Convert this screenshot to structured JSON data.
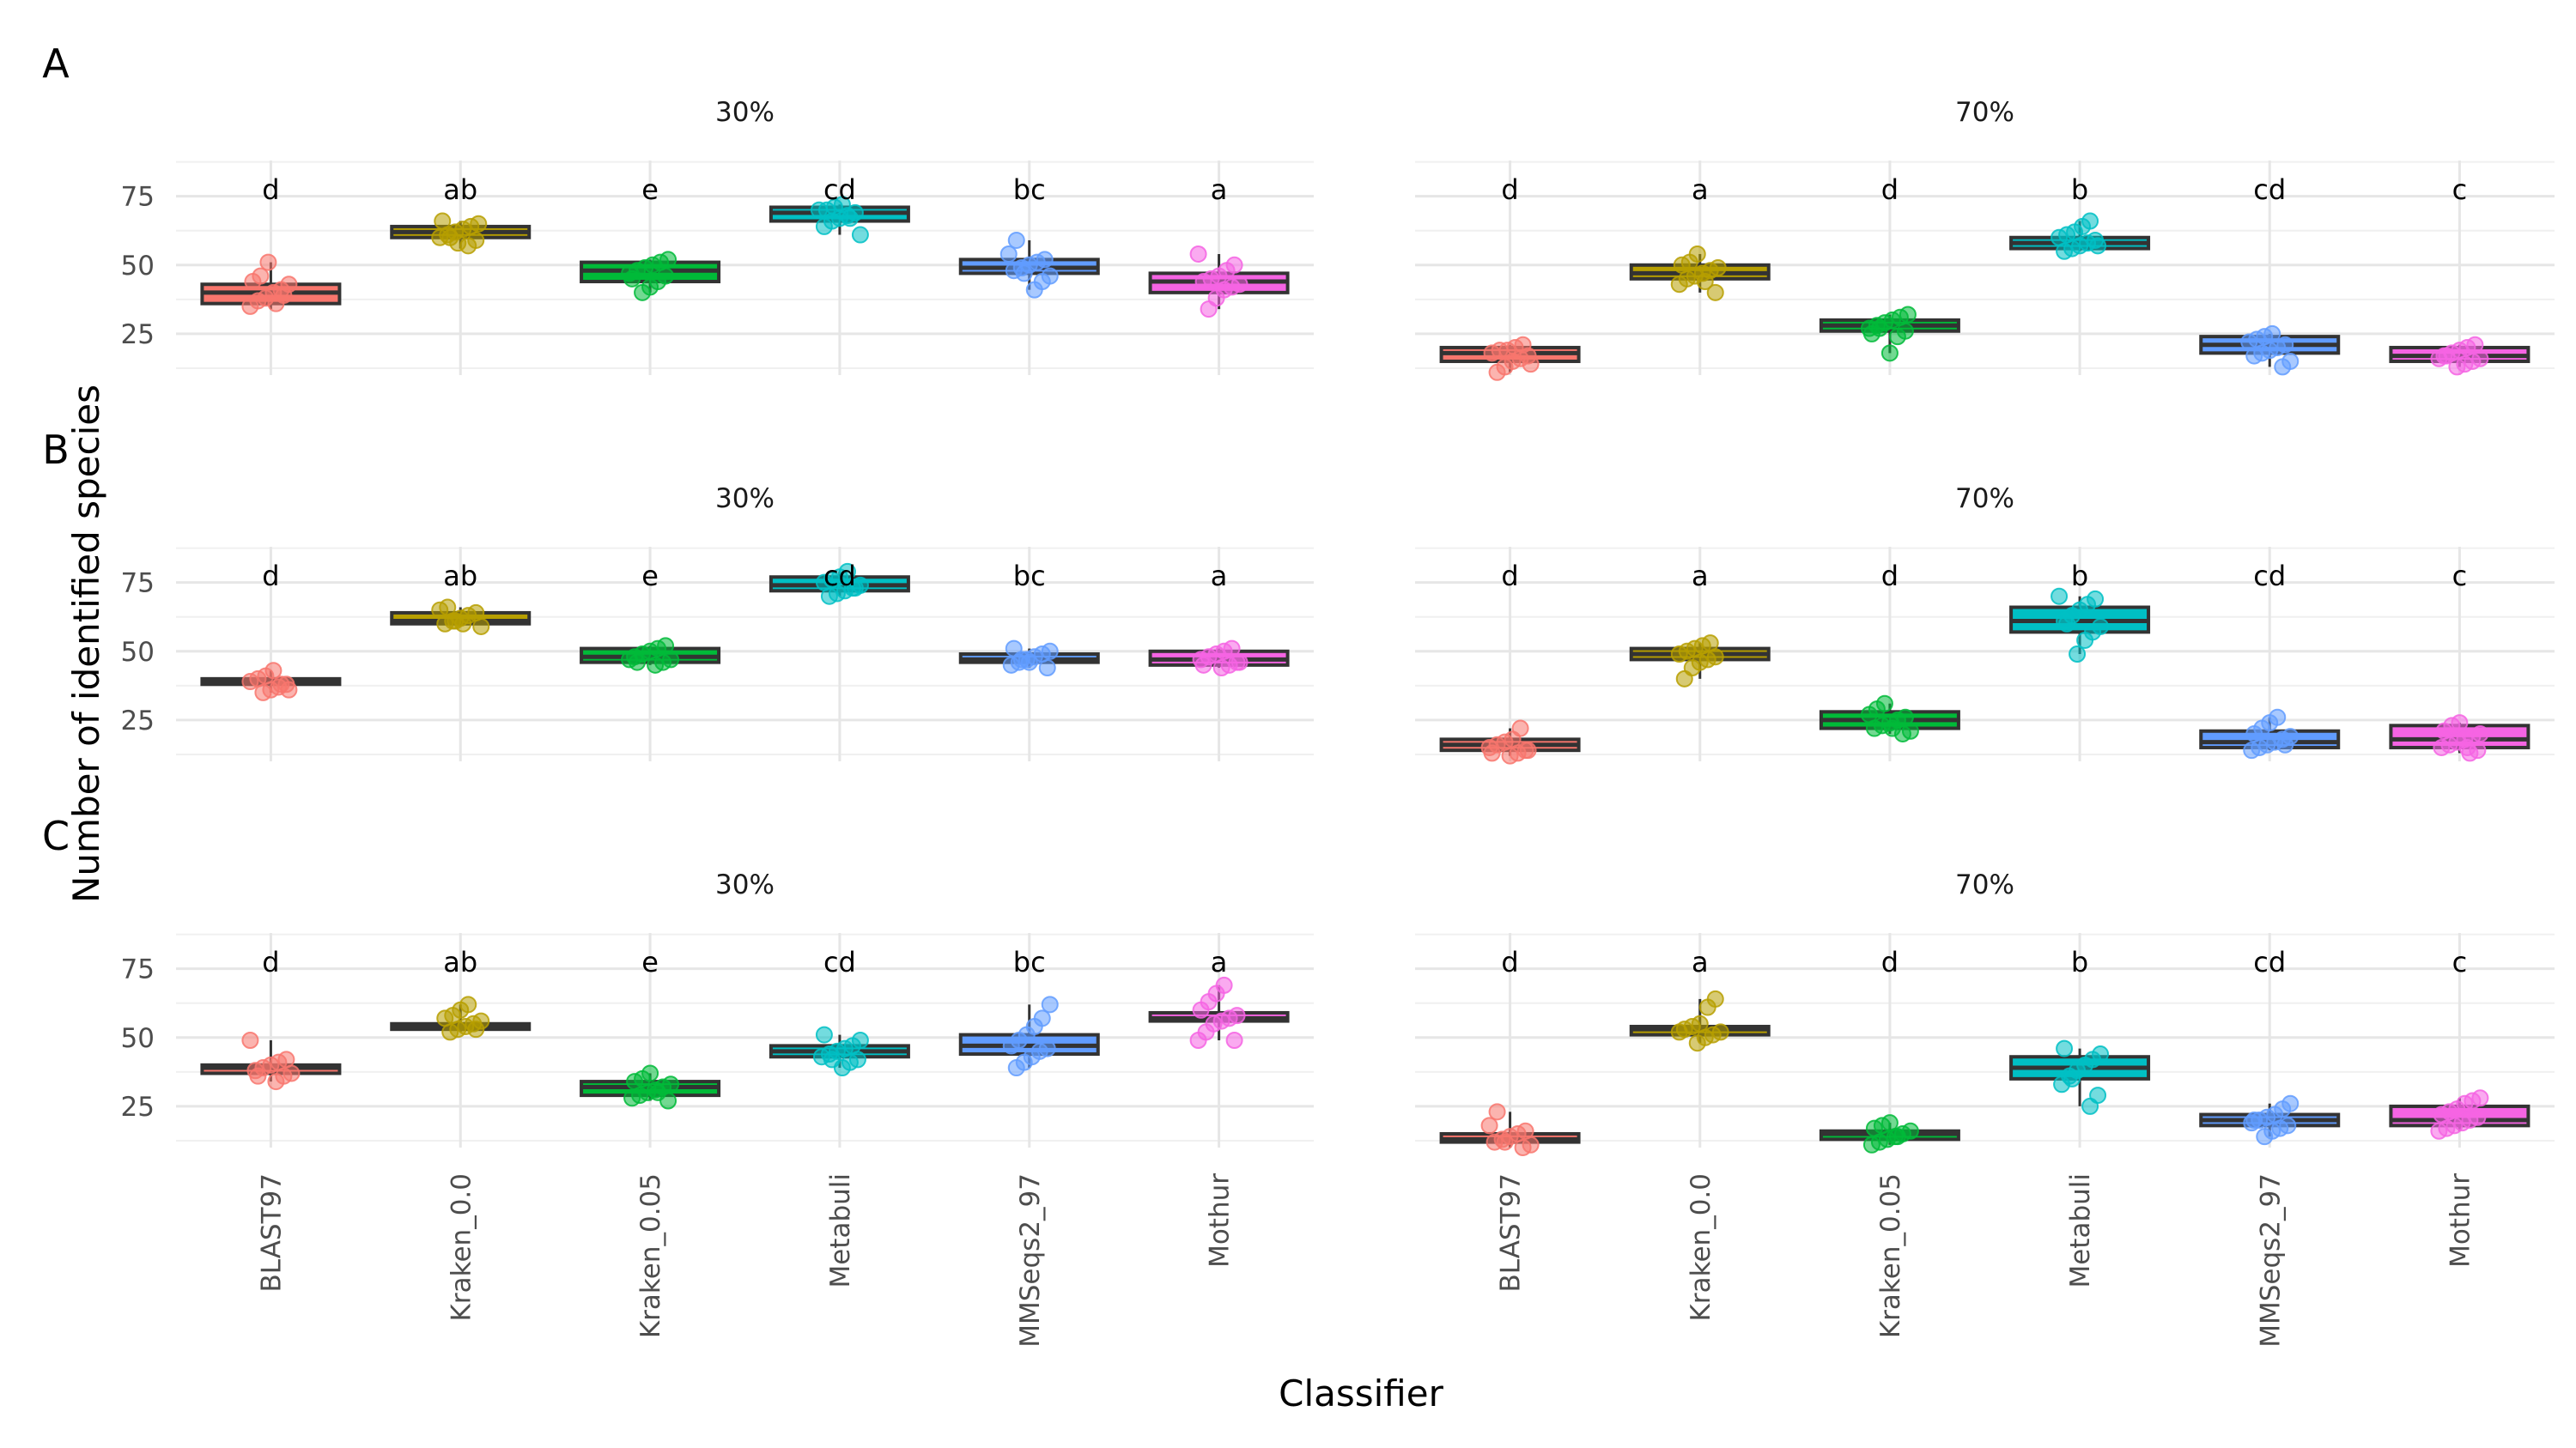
{
  "figure": {
    "ylabel": "Number of identified species",
    "xlabel": "Classifier"
  },
  "chart_data": {
    "type": "boxplot",
    "categories": [
      "BLAST97",
      "Kraken_0.0",
      "Kraken_0.05",
      "Metabuli",
      "MMSeqs2_97",
      "Mothur"
    ],
    "colors": [
      "#F8766D",
      "#B79F00",
      "#00BA38",
      "#00BFC4",
      "#619CFF",
      "#F564E3"
    ],
    "ylim": [
      10,
      88
    ],
    "yticks": [
      25,
      50,
      75
    ],
    "grid": true,
    "panels": [
      {
        "label": "A",
        "facets": [
          {
            "title": "30%",
            "letters": [
              "d",
              "ab",
              "e",
              "cd",
              "bc",
              "a"
            ],
            "boxes": [
              [
                34,
                36,
                40,
                43,
                51
              ],
              [
                56,
                60,
                62,
                64,
                66
              ],
              [
                40,
                44,
                48,
                51,
                52
              ],
              [
                61,
                66,
                69,
                71,
                72
              ],
              [
                41,
                47,
                49,
                52,
                59
              ],
              [
                34,
                40,
                44,
                47,
                54
              ]
            ],
            "points": [
              [
                35,
                37,
                38,
                40,
                41,
                43,
                44,
                46,
                51,
                36,
                39
              ],
              [
                57,
                59,
                60,
                61,
                62,
                63,
                64,
                65,
                66,
                60,
                58
              ],
              [
                40,
                42,
                44,
                46,
                47,
                48,
                49,
                50,
                51,
                52,
                45
              ],
              [
                61,
                64,
                66,
                67,
                68,
                69,
                70,
                70,
                71,
                72,
                67
              ],
              [
                41,
                44,
                46,
                48,
                49,
                50,
                51,
                52,
                54,
                59,
                47
              ],
              [
                34,
                38,
                41,
                42,
                43,
                44,
                45,
                46,
                48,
                50,
                54
              ]
            ]
          },
          {
            "title": "70%",
            "letters": [
              "d",
              "a",
              "d",
              "b",
              "cd",
              "c"
            ],
            "boxes": [
              [
                11,
                15,
                18,
                20,
                21
              ],
              [
                40,
                45,
                47,
                50,
                54
              ],
              [
                18,
                26,
                28,
                30,
                32
              ],
              [
                55,
                56,
                58,
                60,
                66
              ],
              [
                13,
                18,
                21,
                24,
                25
              ],
              [
                13,
                15,
                17,
                20,
                21
              ]
            ],
            "points": [
              [
                11,
                13,
                15,
                16,
                17,
                18,
                19,
                19,
                20,
                21,
                14
              ],
              [
                40,
                43,
                45,
                46,
                47,
                48,
                49,
                50,
                51,
                54,
                44
              ],
              [
                18,
                24,
                26,
                27,
                28,
                29,
                30,
                31,
                32,
                25,
                27
              ],
              [
                55,
                56,
                57,
                58,
                59,
                60,
                61,
                62,
                64,
                66,
                57
              ],
              [
                13,
                15,
                17,
                18,
                19,
                20,
                21,
                22,
                23,
                24,
                25
              ],
              [
                13,
                14,
                15,
                16,
                17,
                18,
                19,
                20,
                21,
                16,
                17
              ]
            ]
          }
        ]
      },
      {
        "label": "B",
        "facets": [
          {
            "title": "30%",
            "letters": [
              "d",
              "ab",
              "e",
              "cd",
              "bc",
              "a"
            ],
            "boxes": [
              [
                35,
                38,
                39,
                40,
                43
              ],
              [
                59,
                60,
                61,
                64,
                66
              ],
              [
                45,
                46,
                48,
                51,
                52
              ],
              [
                70,
                72,
                74,
                77,
                79
              ],
              [
                44,
                46,
                47,
                49,
                51
              ],
              [
                44,
                45,
                47,
                50,
                51
              ]
            ],
            "points": [
              [
                35,
                36,
                37,
                38,
                39,
                40,
                41,
                43,
                38,
                36
              ],
              [
                59,
                60,
                61,
                62,
                63,
                64,
                65,
                66,
                61,
                60
              ],
              [
                45,
                46,
                47,
                48,
                49,
                50,
                51,
                52,
                47,
                46
              ],
              [
                70,
                71,
                72,
                73,
                74,
                75,
                76,
                77,
                79,
                73
              ],
              [
                44,
                45,
                46,
                47,
                48,
                49,
                50,
                51,
                47,
                46
              ],
              [
                44,
                45,
                46,
                47,
                48,
                49,
                50,
                51,
                46,
                45
              ]
            ]
          },
          {
            "title": "70%",
            "letters": [
              "d",
              "a",
              "d",
              "b",
              "cd",
              "c"
            ],
            "boxes": [
              [
                12,
                14,
                16,
                18,
                22
              ],
              [
                40,
                47,
                49,
                51,
                53
              ],
              [
                20,
                22,
                25,
                28,
                31
              ],
              [
                49,
                57,
                61,
                66,
                70
              ],
              [
                14,
                15,
                17,
                21,
                26
              ],
              [
                13,
                15,
                18,
                23,
                24
              ]
            ],
            "points": [
              [
                12,
                13,
                14,
                15,
                16,
                17,
                18,
                22,
                14,
                13
              ],
              [
                40,
                44,
                46,
                47,
                48,
                49,
                50,
                51,
                52,
                53
              ],
              [
                20,
                21,
                22,
                23,
                24,
                25,
                26,
                27,
                29,
                31,
                22
              ],
              [
                49,
                54,
                57,
                59,
                61,
                63,
                65,
                67,
                69,
                70,
                60
              ],
              [
                14,
                15,
                16,
                17,
                18,
                19,
                20,
                22,
                24,
                26,
                16
              ],
              [
                13,
                14,
                15,
                16,
                17,
                18,
                19,
                20,
                21,
                23,
                24,
                15
              ]
            ]
          }
        ]
      },
      {
        "label": "C",
        "facets": [
          {
            "title": "30%",
            "letters": [
              "d",
              "ab",
              "e",
              "cd",
              "bc",
              "a"
            ],
            "boxes": [
              [
                34,
                37,
                39,
                40,
                49
              ],
              [
                52,
                53,
                54,
                55,
                62
              ],
              [
                27,
                29,
                32,
                34,
                37
              ],
              [
                39,
                43,
                45,
                47,
                51
              ],
              [
                39,
                44,
                47,
                51,
                62
              ],
              [
                49,
                56,
                57,
                59,
                69
              ]
            ],
            "points": [
              [
                34,
                36,
                37,
                38,
                39,
                40,
                41,
                42,
                49,
                36
              ],
              [
                52,
                53,
                54,
                55,
                56,
                57,
                58,
                60,
                62,
                53
              ],
              [
                27,
                28,
                29,
                30,
                31,
                32,
                33,
                34,
                35,
                37,
                30
              ],
              [
                39,
                41,
                42,
                43,
                44,
                45,
                46,
                47,
                49,
                51,
                42
              ],
              [
                39,
                41,
                43,
                45,
                46,
                47,
                49,
                51,
                54,
                57,
                62
              ],
              [
                49,
                49,
                52,
                55,
                56,
                57,
                58,
                60,
                63,
                66,
                69
              ]
            ]
          },
          {
            "title": "70%",
            "letters": [
              "d",
              "a",
              "d",
              "b",
              "cd",
              "c"
            ],
            "boxes": [
              [
                10,
                12,
                13,
                15,
                23
              ],
              [
                48,
                51,
                53,
                54,
                64
              ],
              [
                11,
                13,
                15,
                16,
                19
              ],
              [
                25,
                35,
                39,
                43,
                46
              ],
              [
                14,
                18,
                20,
                22,
                26
              ],
              [
                16,
                18,
                20,
                25,
                28
              ]
            ],
            "points": [
              [
                10,
                11,
                12,
                13,
                14,
                15,
                16,
                18,
                23,
                12
              ],
              [
                48,
                50,
                51,
                52,
                53,
                54,
                55,
                61,
                64,
                52
              ],
              [
                11,
                12,
                13,
                14,
                15,
                16,
                17,
                18,
                19,
                14
              ],
              [
                25,
                29,
                33,
                36,
                38,
                40,
                42,
                44,
                46,
                35
              ],
              [
                14,
                16,
                17,
                18,
                19,
                20,
                21,
                22,
                24,
                26,
                20
              ],
              [
                16,
                17,
                18,
                19,
                20,
                21,
                22,
                23,
                24,
                26,
                27,
                28
              ]
            ]
          }
        ]
      }
    ]
  }
}
